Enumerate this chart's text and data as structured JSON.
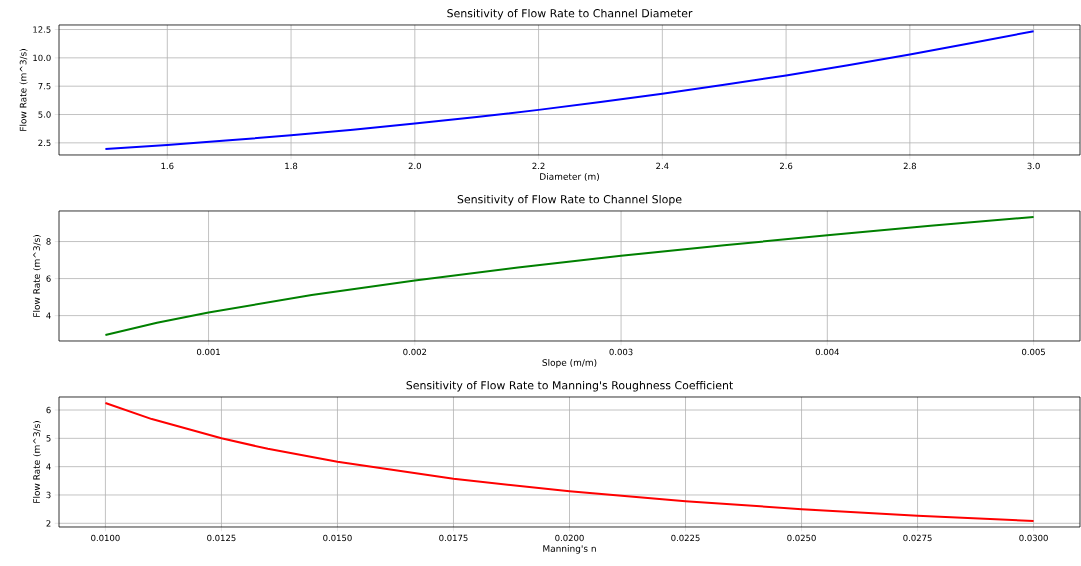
{
  "chart_data": [
    {
      "type": "line",
      "title": "Sensitivity of Flow Rate to Channel Diameter",
      "xlabel": "Diameter (m)",
      "ylabel": "Flow Rate (m^3/s)",
      "grid": true,
      "x": [
        1.5,
        1.6,
        1.7,
        1.8,
        1.9,
        2.0,
        2.1,
        2.2,
        2.3,
        2.4,
        2.5,
        2.6,
        2.7,
        2.8,
        2.9,
        3.0
      ],
      "series": [
        {
          "color": "#0000ff",
          "values": [
            1.95,
            2.32,
            2.72,
            3.17,
            3.66,
            4.2,
            4.78,
            5.41,
            6.1,
            6.83,
            7.62,
            8.45,
            9.35,
            10.3,
            11.31,
            12.35
          ]
        }
      ],
      "xlim": [
        1.425,
        3.075
      ],
      "ylim": [
        1.43,
        12.9
      ],
      "xticks": [
        1.6,
        1.8,
        {
          "value": 2,
          "label": "2.0"
        },
        2.2,
        2.4,
        2.6,
        2.8,
        {
          "value": 3,
          "label": "3.0"
        }
      ],
      "yticks": [
        2.5,
        {
          "value": 5,
          "label": "5.0"
        },
        7.5,
        {
          "value": 10,
          "label": "10.0"
        },
        12.5
      ]
    },
    {
      "type": "line",
      "title": "Sensitivity of Flow Rate to Channel Slope",
      "xlabel": "Slope (m/m)",
      "ylabel": "Flow Rate (m^3/s)",
      "grid": true,
      "x": [
        0.0005,
        0.00075,
        0.001,
        0.0015,
        0.002,
        0.0025,
        0.003,
        0.0035,
        0.004,
        0.0045,
        0.005
      ],
      "series": [
        {
          "color": "#008000",
          "values": [
            2.95,
            3.61,
            4.17,
            5.11,
            5.9,
            6.6,
            7.23,
            7.8,
            8.34,
            8.85,
            9.33
          ]
        }
      ],
      "xlim": [
        0.000275,
        0.005225
      ],
      "ylim": [
        2.63,
        9.65
      ],
      "xticks": [
        0.001,
        0.002,
        0.003,
        0.004,
        0.005
      ],
      "yticks": [
        4,
        6,
        8
      ]
    },
    {
      "type": "line",
      "title": "Sensitivity of Flow Rate to Manning's Roughness Coefficient",
      "xlabel": "Manning's n",
      "ylabel": "Flow Rate (m^3/s)",
      "grid": true,
      "x": [
        0.01,
        0.011,
        0.0125,
        0.0135,
        0.015,
        0.0175,
        0.02,
        0.0225,
        0.025,
        0.0275,
        0.03
      ],
      "series": [
        {
          "color": "#ff0000",
          "values": [
            6.25,
            5.68,
            5.0,
            4.63,
            4.17,
            3.57,
            3.13,
            2.78,
            2.5,
            2.27,
            2.08
          ]
        }
      ],
      "xlim": [
        0.009,
        0.031
      ],
      "ylim": [
        1.87,
        6.46
      ],
      "xticks": [
        {
          "value": 0.01,
          "label": "0.0100"
        },
        0.0125,
        {
          "value": 0.015,
          "label": "0.0150"
        },
        0.0175,
        {
          "value": 0.02,
          "label": "0.0200"
        },
        0.0225,
        {
          "value": 0.025,
          "label": "0.0250"
        },
        0.0275,
        {
          "value": 0.03,
          "label": "0.0300"
        }
      ],
      "yticks": [
        2,
        3,
        4,
        5,
        6
      ]
    }
  ]
}
